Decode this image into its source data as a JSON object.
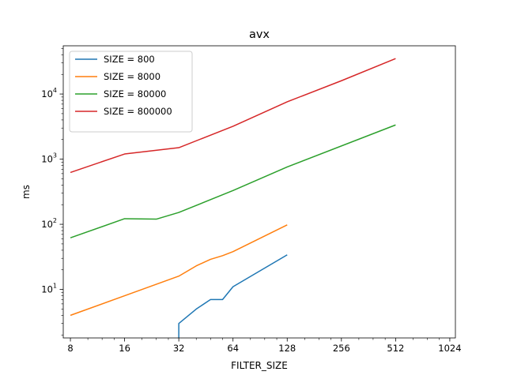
{
  "chart_data": {
    "type": "line",
    "title": "avx",
    "xlabel": "FILTER_SIZE",
    "ylabel": "ms",
    "xscale": "log2",
    "yscale": "log10",
    "xlim": [
      7.3,
      1100
    ],
    "ylim": [
      1.8,
      55000
    ],
    "xticks": [
      8,
      16,
      32,
      64,
      128,
      256,
      512,
      1024
    ],
    "xtick_labels": [
      "8",
      "16",
      "32",
      "64",
      "128",
      "256",
      "512",
      "1024"
    ],
    "yticks": [
      10,
      100,
      1000,
      10000
    ],
    "ytick_labels": [
      {
        "base": "10",
        "exp": "1"
      },
      {
        "base": "10",
        "exp": "2"
      },
      {
        "base": "10",
        "exp": "3"
      },
      {
        "base": "10",
        "exp": "4"
      }
    ],
    "grid": false,
    "legend": "top-left",
    "series": [
      {
        "name": "SIZE = 800",
        "color": "#1f77b4",
        "x": [
          32,
          32,
          40,
          48,
          56,
          64,
          128
        ],
        "y": [
          1.0,
          3.0,
          5.0,
          7.0,
          7.0,
          11.0,
          34.0
        ]
      },
      {
        "name": "SIZE = 8000",
        "color": "#ff7f0e",
        "x": [
          8,
          16,
          32,
          40,
          48,
          56,
          64,
          128
        ],
        "y": [
          4.0,
          8.0,
          16.0,
          23.0,
          29.0,
          33.0,
          38.0,
          98.0
        ]
      },
      {
        "name": "SIZE = 80000",
        "color": "#2ca02c",
        "x": [
          8,
          16,
          24,
          32,
          64,
          128,
          512
        ],
        "y": [
          62,
          122,
          120,
          152,
          330,
          760,
          3350
        ]
      },
      {
        "name": "SIZE = 800000",
        "color": "#d62728",
        "x": [
          8,
          16,
          32,
          64,
          128,
          256,
          512
        ],
        "y": [
          625,
          1200,
          1500,
          3200,
          7600,
          16000,
          35000
        ]
      }
    ]
  }
}
